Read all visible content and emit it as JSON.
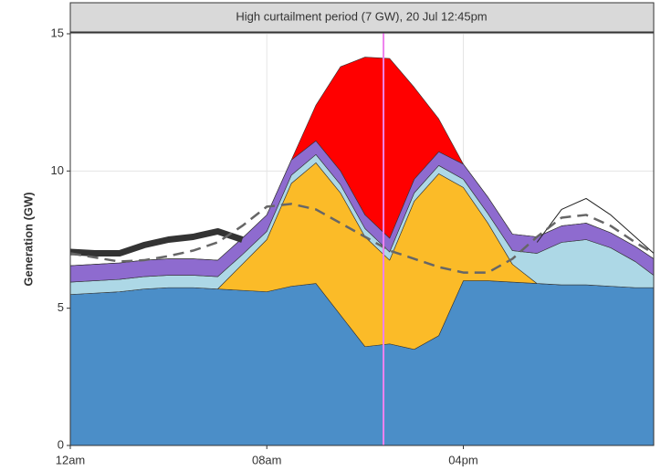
{
  "chart_data": {
    "type": "stacked-area",
    "title": "High curtailment period (7 GW), 20 Jul 12:45pm",
    "y_label": "Generation (GW)",
    "x": [
      0,
      1,
      2,
      3,
      4,
      5,
      6,
      7,
      8,
      9,
      10,
      11,
      12,
      13,
      14,
      15,
      16,
      17,
      18,
      19,
      20,
      21,
      22,
      23,
      23.75
    ],
    "xlim": [
      0,
      23.75
    ],
    "xticks": [
      {
        "value": 0,
        "label": "12am"
      },
      {
        "value": 8,
        "label": "08am"
      },
      {
        "value": 16,
        "label": "04pm"
      }
    ],
    "ylim": [
      0,
      15
    ],
    "yticks": [
      0,
      5,
      10,
      15
    ],
    "grid": true,
    "series": [
      {
        "color": "#4b8ec8",
        "values": [
          5.5,
          5.55,
          5.6,
          5.7,
          5.75,
          5.75,
          5.7,
          5.65,
          5.6,
          5.8,
          5.9,
          4.75,
          3.6,
          3.7,
          3.5,
          4.0,
          6.0,
          6.0,
          5.95,
          5.9,
          5.85,
          5.85,
          5.8,
          5.75,
          5.75
        ]
      },
      {
        "color": "#fbbb28",
        "values": [
          0,
          0,
          0,
          0,
          0,
          0,
          0,
          0.95,
          1.9,
          3.75,
          4.4,
          4.45,
          4.0,
          3.05,
          5.4,
          5.9,
          3.4,
          2.1,
          0.65,
          0,
          0,
          0,
          0,
          0,
          0
        ]
      },
      {
        "color": "#add8e6",
        "values": [
          0.45,
          0.45,
          0.45,
          0.45,
          0.45,
          0.45,
          0.45,
          0.35,
          0.3,
          0.3,
          0.3,
          0.3,
          0.3,
          0.3,
          0.3,
          0.3,
          0.3,
          0.35,
          0.5,
          1.1,
          1.55,
          1.65,
          1.4,
          0.95,
          0.45
        ]
      },
      {
        "color": "#8e6bcf",
        "values": [
          0.6,
          0.6,
          0.6,
          0.6,
          0.6,
          0.6,
          0.6,
          0.6,
          0.6,
          0.55,
          0.5,
          0.5,
          0.5,
          0.5,
          0.5,
          0.5,
          0.55,
          0.6,
          0.6,
          0.6,
          0.6,
          0.6,
          0.55,
          0.55,
          0.6
        ]
      },
      {
        "color": "#ff0000",
        "values": [
          0,
          0,
          0,
          0,
          0,
          0,
          0,
          0,
          0,
          0,
          1.3,
          3.8,
          5.75,
          6.55,
          3.35,
          1.2,
          0,
          0,
          0,
          0,
          0,
          0,
          0,
          0,
          0
        ]
      }
    ],
    "lines": [
      {
        "color": "#333333",
        "style": "thick",
        "values": [
          7.05,
          7.0,
          7.0,
          7.3,
          7.5,
          7.6,
          7.8,
          7.5,
          null,
          null,
          null,
          null,
          null,
          null,
          null,
          null,
          null,
          null,
          null,
          null,
          null,
          null,
          null,
          null,
          null
        ]
      },
      {
        "color": "#222222",
        "style": "thin",
        "values": [
          null,
          null,
          null,
          null,
          null,
          null,
          null,
          null,
          null,
          null,
          null,
          null,
          null,
          null,
          null,
          null,
          null,
          null,
          null,
          7.4,
          8.6,
          9.0,
          8.4,
          7.6,
          7.0
        ]
      },
      {
        "color": "#666666",
        "style": "dashed",
        "values": [
          7.0,
          6.85,
          6.7,
          6.75,
          6.9,
          7.1,
          7.4,
          8.0,
          8.7,
          8.8,
          8.6,
          8.1,
          7.6,
          7.1,
          6.8,
          6.5,
          6.3,
          6.3,
          6.8,
          7.6,
          8.3,
          8.4,
          8.0,
          7.4,
          7.0
        ]
      }
    ],
    "marker_x": 12.75,
    "marker_color": "#ee82ee"
  }
}
